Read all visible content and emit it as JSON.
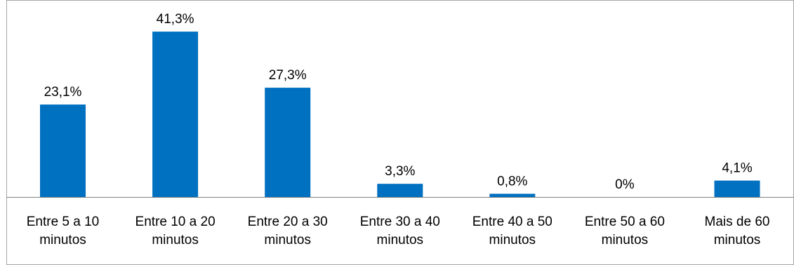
{
  "chart_data": {
    "type": "bar",
    "categories": [
      [
        "Entre 5 a 10",
        "minutos"
      ],
      [
        "Entre 10 a 20",
        "minutos"
      ],
      [
        "Entre 20 a 30",
        "minutos"
      ],
      [
        "Entre 30 a 40",
        "minutos"
      ],
      [
        "Entre 40 a 50",
        "minutos"
      ],
      [
        "Entre 50 a 60",
        "minutos"
      ],
      [
        "Mais de 60",
        "minutos"
      ]
    ],
    "values": [
      23.1,
      41.3,
      27.3,
      3.3,
      0.8,
      0,
      4.1
    ],
    "data_labels": [
      "23,1%",
      "41,3%",
      "27,3%",
      "3,3%",
      "0,8%",
      "0%",
      "4,1%"
    ],
    "title": "",
    "xlabel": "",
    "ylabel": "",
    "ylim": [
      0,
      45
    ],
    "grid": false,
    "legend": "none",
    "colors": {
      "bar": "#0070C0",
      "border": "#A6A6A6",
      "axis": "#808080"
    }
  }
}
